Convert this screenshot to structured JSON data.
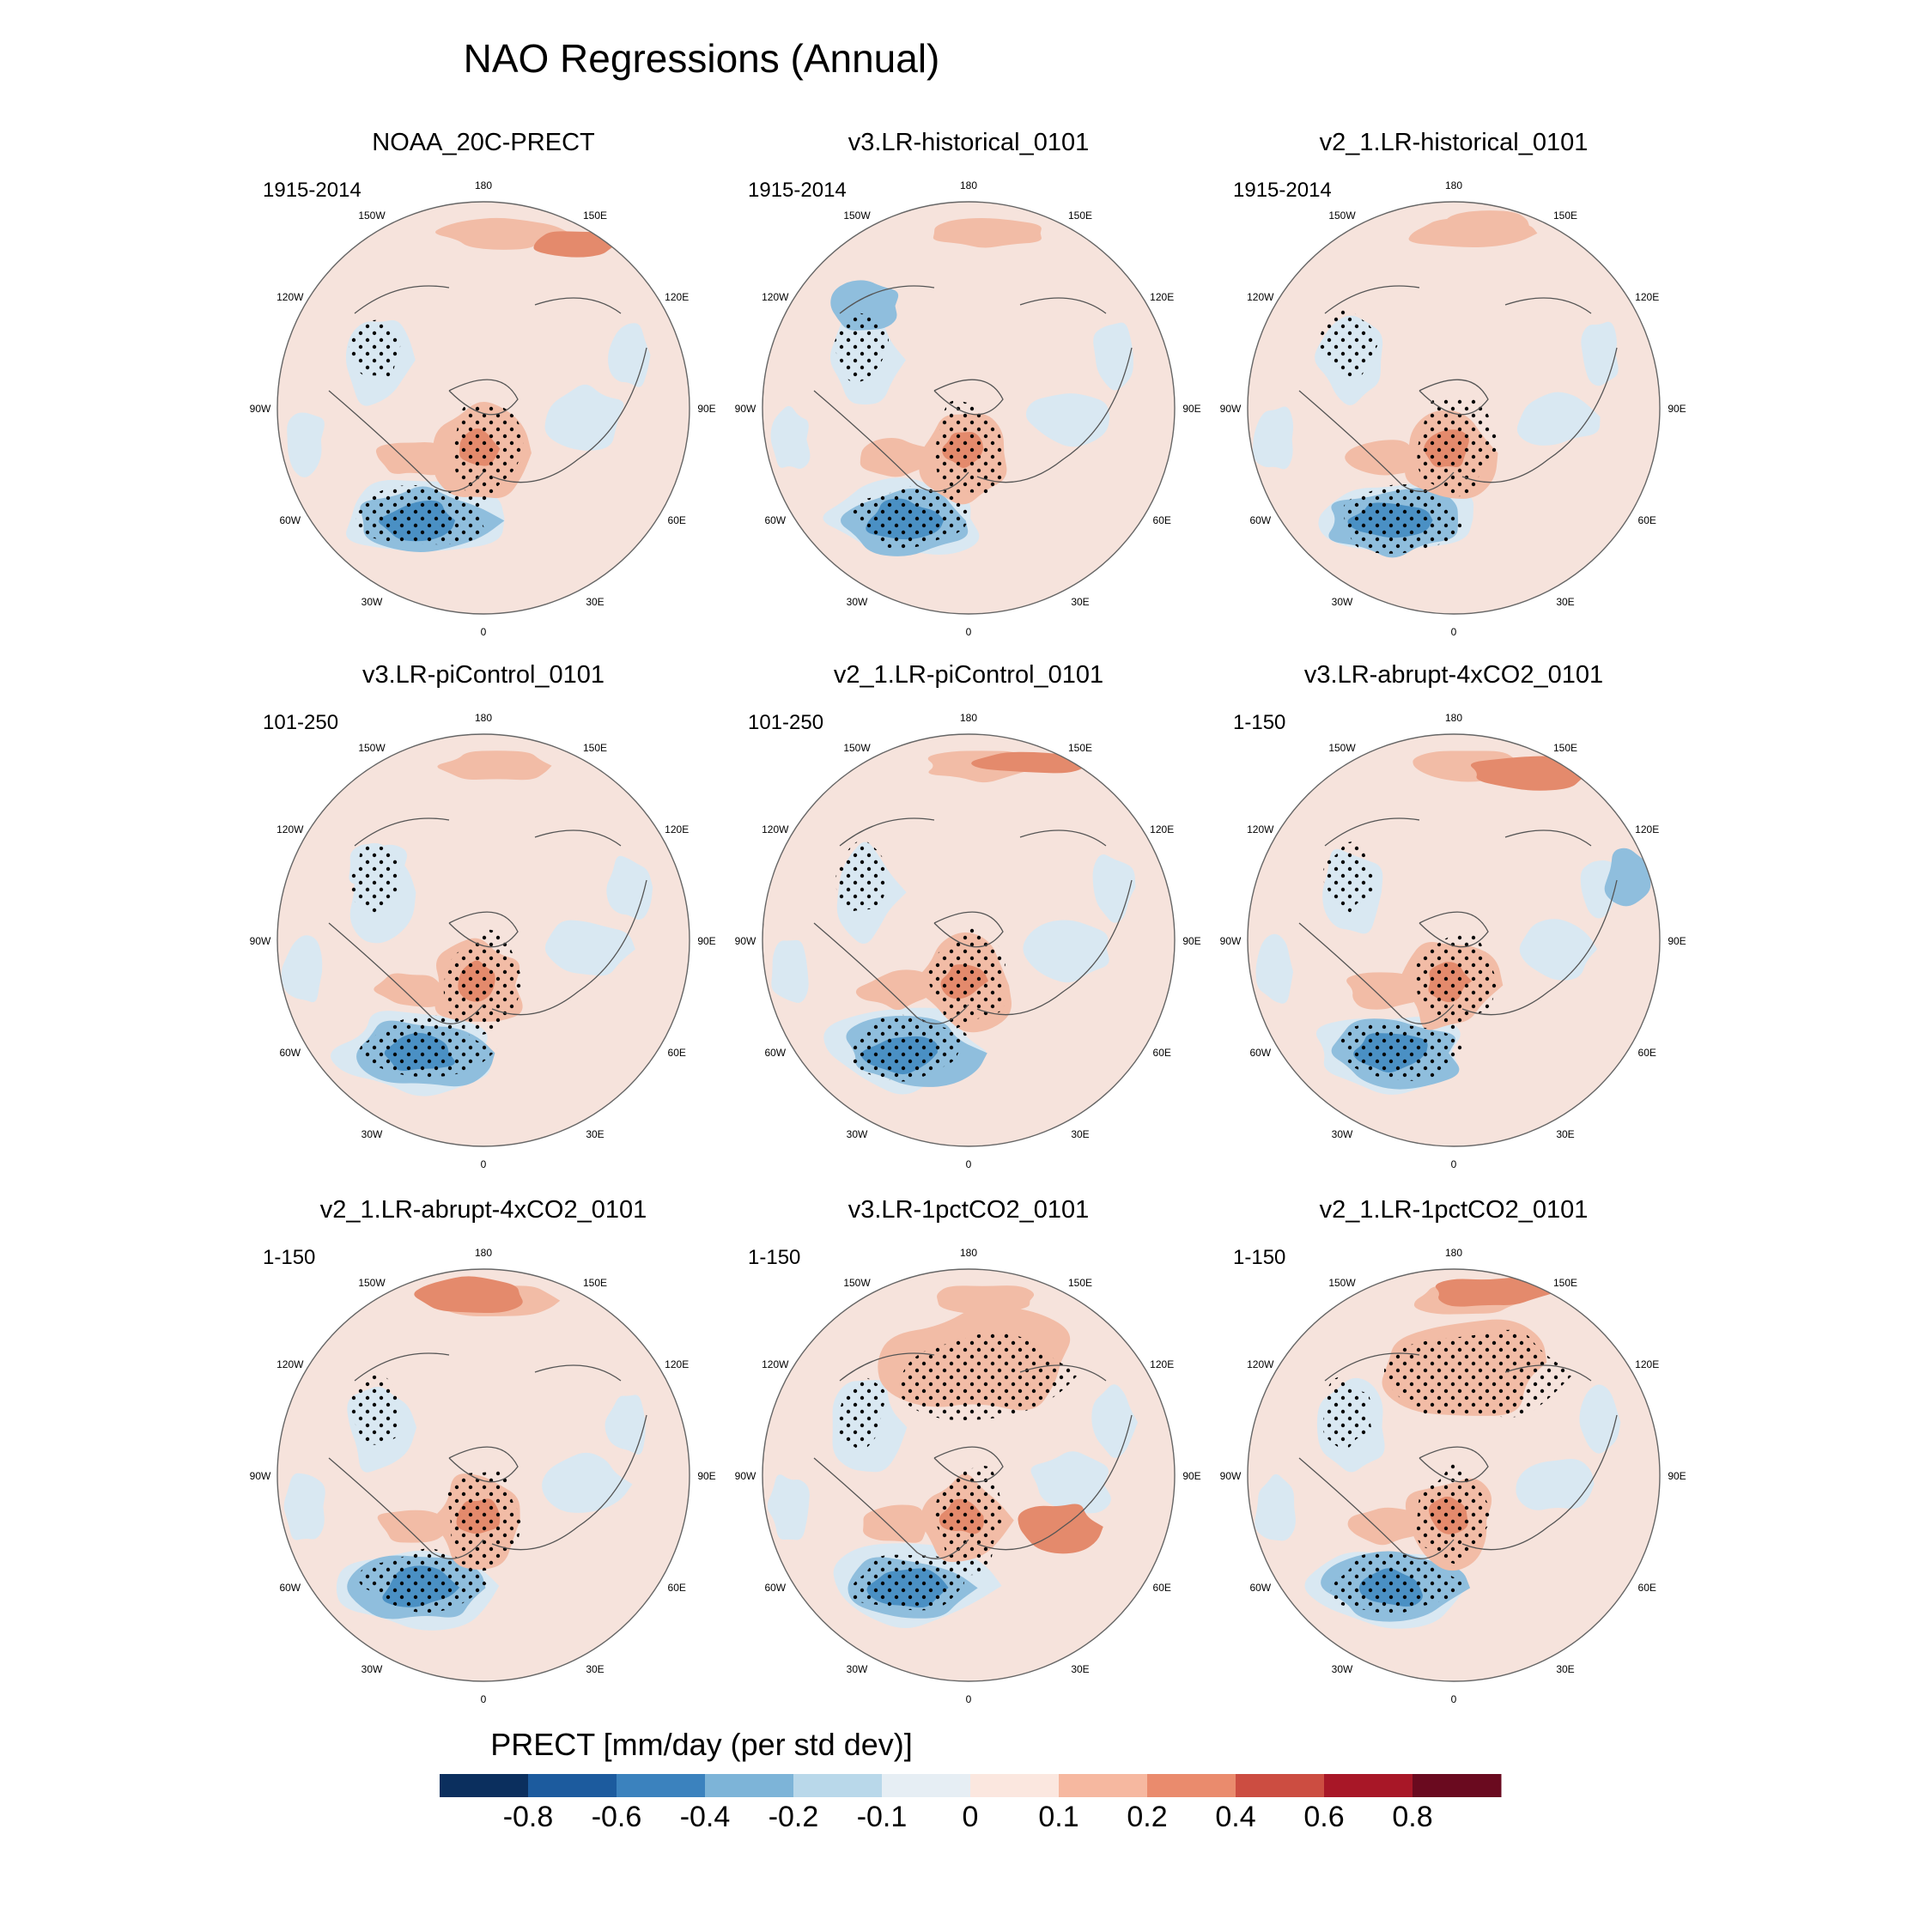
{
  "figure": {
    "title": "NAO Regressions (Annual)"
  },
  "longitude_labels": [
    "180",
    "150E",
    "120E",
    "90E",
    "60E",
    "30E",
    "0",
    "30W",
    "60W",
    "90W",
    "120W",
    "150W"
  ],
  "panels": [
    {
      "title": "NOAA_20C-PRECT",
      "period": "1915-2014"
    },
    {
      "title": "v3.LR-historical_0101",
      "period": "1915-2014"
    },
    {
      "title": "v2_1.LR-historical_0101",
      "period": "1915-2014"
    },
    {
      "title": "v3.LR-piControl_0101",
      "period": "101-250"
    },
    {
      "title": "v2_1.LR-piControl_0101",
      "period": "101-250"
    },
    {
      "title": "v3.LR-abrupt-4xCO2_0101",
      "period": "1-150"
    },
    {
      "title": "v2_1.LR-abrupt-4xCO2_0101",
      "period": "1-150"
    },
    {
      "title": "v3.LR-1pctCO2_0101",
      "period": "1-150"
    },
    {
      "title": "v2_1.LR-1pctCO2_0101",
      "period": "1-150"
    }
  ],
  "colorbar": {
    "title": "PRECT [mm/day (per std dev)]",
    "tick_labels": [
      "-0.8",
      "-0.6",
      "-0.4",
      "-0.2",
      "-0.1",
      "0",
      "0.1",
      "0.2",
      "0.4",
      "0.6",
      "0.8"
    ],
    "colors": [
      "#0b2f5e",
      "#1c5b9e",
      "#3b82be",
      "#7db4d8",
      "#b9d8ea",
      "#e6eef4",
      "#fbe7df",
      "#f6b8a0",
      "#ea8b6d",
      "#cc4d41",
      "#a81727",
      "#6a0a1f"
    ]
  },
  "map_colors": {
    "background": "#f6e3dc",
    "blue_light": "#d9e8f2",
    "blue_mid": "#8fbedd",
    "blue_dark": "#4a90c4",
    "red_light": "#f2bca6",
    "red_mid": "#e48a6c",
    "coast": "#555555"
  }
}
